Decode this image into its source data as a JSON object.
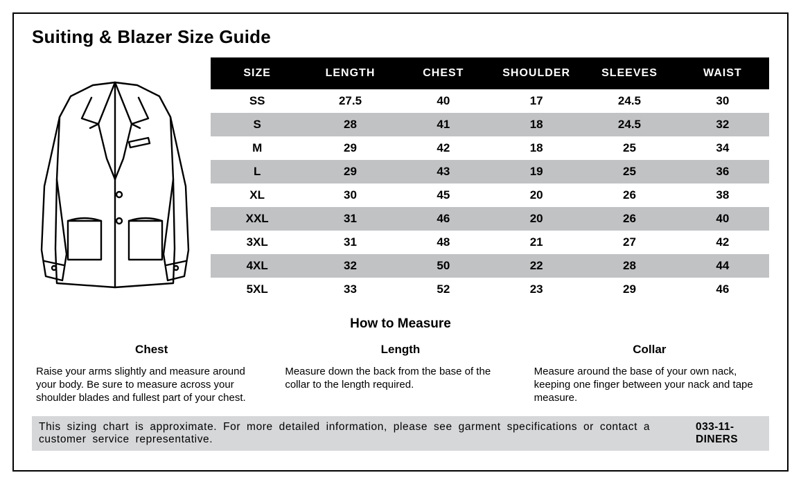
{
  "title": "Suiting & Blazer Size Guide",
  "table": {
    "columns": [
      "SIZE",
      "LENGTH",
      "CHEST",
      "SHOULDER",
      "SLEEVES",
      "WAIST"
    ],
    "rows": [
      [
        "SS",
        "27.5",
        "40",
        "17",
        "24.5",
        "30"
      ],
      [
        "S",
        "28",
        "41",
        "18",
        "24.5",
        "32"
      ],
      [
        "M",
        "29",
        "42",
        "18",
        "25",
        "34"
      ],
      [
        "L",
        "29",
        "43",
        "19",
        "25",
        "36"
      ],
      [
        "XL",
        "30",
        "45",
        "20",
        "26",
        "38"
      ],
      [
        "XXL",
        "31",
        "46",
        "20",
        "26",
        "40"
      ],
      [
        "3XL",
        "31",
        "48",
        "21",
        "27",
        "42"
      ],
      [
        "4XL",
        "32",
        "50",
        "22",
        "28",
        "44"
      ],
      [
        "5XL",
        "33",
        "52",
        "23",
        "29",
        "46"
      ]
    ],
    "header_bg": "#000000",
    "header_fg": "#ffffff",
    "row_alt_bg": "#c1c2c4",
    "row_bg": "#ffffff",
    "font_weight": "700"
  },
  "howto": {
    "title": "How to Measure",
    "sections": [
      {
        "heading": "Chest",
        "body": "Raise your arms slightly and measure around your body. Be sure to measure across your shoulder blades and fullest part of your chest."
      },
      {
        "heading": "Length",
        "body": "Measure down the back from the base of the collar to the length required."
      },
      {
        "heading": "Collar",
        "body": "Measure around the base of your own nack, keeping one finger between your nack and tape measure."
      }
    ]
  },
  "footer": {
    "text": "This sizing chart is approximate. For more detailed information, please see garment specifications or contact a customer service representative.",
    "phone": "033-11-DINERS",
    "bg": "#d6d7d9"
  },
  "colors": {
    "border": "#000000",
    "background": "#ffffff",
    "text": "#000000"
  }
}
